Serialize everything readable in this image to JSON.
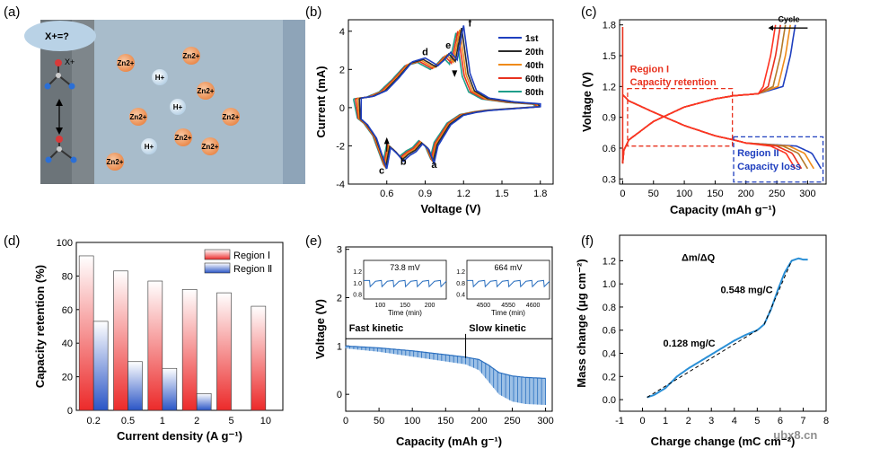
{
  "panels": {
    "a": {
      "label": "(a)",
      "question": "X+=?",
      "ions_zn": [
        "Zn2+",
        "Zn2+",
        "Zn2+",
        "Zn2+",
        "Zn2+",
        "Zn2+",
        "Zn2+",
        "Zn2+",
        "Zn2+",
        "Zn2+"
      ],
      "ions_h": [
        "H+",
        "H+",
        "H+"
      ],
      "molecule_label": "X+",
      "colors": {
        "electrolyte": "#a8bccb",
        "electrode": "#6c7479",
        "zn": "#f0a06a",
        "h": "#e3eef6",
        "bubble": "#b9d2e6"
      }
    },
    "b": {
      "label": "(b)"
    },
    "c": {
      "label": "(c)"
    },
    "d": {
      "label": "(d)"
    },
    "e": {
      "label": "(e)"
    },
    "f": {
      "label": "(f)"
    }
  },
  "chart_data": [
    {
      "id": "b",
      "type": "line",
      "xlabel": "Voltage (V)",
      "ylabel": "Current (mA)",
      "xlim": [
        0.3,
        1.9
      ],
      "ylim": [
        -4,
        4.6
      ],
      "xticks": [
        "0.6",
        "0.9",
        "1.2",
        "1.5",
        "1.8"
      ],
      "xtick_values": [
        0.6,
        0.9,
        1.2,
        1.5,
        1.8
      ],
      "yticks": [
        "-4",
        "-2",
        "0",
        "2",
        "4"
      ],
      "ytick_values": [
        -4,
        -2,
        0,
        2,
        4
      ],
      "legend": [
        "1st",
        "20th",
        "40th",
        "60th",
        "80th"
      ],
      "legend_sup": [
        [
          "1",
          "st"
        ],
        [
          "20",
          "th"
        ],
        [
          "40",
          "th"
        ],
        [
          "60",
          "th"
        ],
        [
          "80",
          "th"
        ]
      ],
      "colors": [
        "#1f3fbf",
        "#2b2b2b",
        "#ef8a1a",
        "#e8321f",
        "#1f9e8a"
      ],
      "peak_labels": [
        {
          "text": "a",
          "x": 0.97,
          "y": -3.15
        },
        {
          "text": "b",
          "x": 0.73,
          "y": -3.0
        },
        {
          "text": "c",
          "x": 0.56,
          "y": -3.45
        },
        {
          "text": "d",
          "x": 0.9,
          "y": 2.75
        },
        {
          "text": "e",
          "x": 1.08,
          "y": 3.1
        },
        {
          "text": "f",
          "x": 1.25,
          "y": 4.25
        }
      ],
      "series": [
        {
          "name": "1st",
          "shift": 0.0,
          "scale": 1.0
        },
        {
          "name": "20th",
          "shift": -0.015,
          "scale": 0.97
        },
        {
          "name": "40th",
          "shift": -0.03,
          "scale": 0.95
        },
        {
          "name": "60th",
          "shift": -0.045,
          "scale": 0.93
        },
        {
          "name": "80th",
          "shift": -0.06,
          "scale": 0.91
        }
      ],
      "oxidation": {
        "x": [
          0.4,
          0.5,
          0.6,
          0.7,
          0.8,
          0.9,
          0.95,
          1.0,
          1.05,
          1.1,
          1.15,
          1.2,
          1.25,
          1.3,
          1.4,
          1.5,
          1.6,
          1.7,
          1.8
        ],
        "y": [
          0.5,
          0.6,
          0.9,
          1.6,
          2.4,
          2.6,
          2.4,
          2.2,
          2.5,
          2.9,
          2.5,
          4.3,
          1.8,
          0.9,
          0.5,
          0.4,
          0.3,
          0.25,
          0.2
        ]
      },
      "reduction": {
        "x": [
          1.8,
          1.7,
          1.6,
          1.5,
          1.4,
          1.3,
          1.2,
          1.1,
          1.0,
          0.97,
          0.93,
          0.88,
          0.83,
          0.78,
          0.73,
          0.68,
          0.63,
          0.6,
          0.57,
          0.52,
          0.45,
          0.4
        ],
        "y": [
          0.05,
          0.0,
          -0.05,
          -0.1,
          -0.15,
          -0.25,
          -0.4,
          -0.9,
          -2.0,
          -2.9,
          -2.2,
          -1.9,
          -2.3,
          -2.5,
          -2.8,
          -2.4,
          -2.1,
          -3.2,
          -2.6,
          -1.6,
          -0.9,
          -0.6
        ]
      }
    },
    {
      "id": "c",
      "type": "line",
      "xlabel": "Capacity (mAh g⁻¹)",
      "ylabel": "Voltage (V)",
      "xlim": [
        -5,
        330
      ],
      "ylim": [
        0.25,
        1.85
      ],
      "xticks": [
        "0",
        "50",
        "100",
        "150",
        "200",
        "250",
        "300"
      ],
      "xtick_values": [
        0,
        50,
        100,
        150,
        200,
        250,
        300
      ],
      "yticks": [
        "0.3",
        "0.6",
        "0.9",
        "1.2",
        "1.5",
        "1.8"
      ],
      "ytick_values": [
        0.3,
        0.6,
        0.9,
        1.2,
        1.5,
        1.8
      ],
      "cycle_label": "Cycle",
      "region1_title": "Region I",
      "region1_sub": "Capacity retention",
      "region2_title": "Region II",
      "region2_sub": "Capacity loss",
      "colors": [
        "#1f3fbf",
        "#ef8a1a",
        "#b57a2a",
        "#e8321f",
        "#ff3322"
      ],
      "ends": [
        322,
        310,
        300,
        290,
        280
      ],
      "charge_ends": [
        280,
        272,
        264,
        256,
        248
      ]
    },
    {
      "id": "d",
      "type": "bar",
      "xlabel": "Current density (A g⁻¹)",
      "ylabel": "Capacity retention (%)",
      "categories": [
        "0.2",
        "0.5",
        "1",
        "2",
        "5",
        "10"
      ],
      "ylim": [
        0,
        100
      ],
      "yticks": [
        "0",
        "20",
        "40",
        "60",
        "80",
        "100"
      ],
      "ytick_values": [
        0,
        20,
        40,
        60,
        80,
        100
      ],
      "series": [
        {
          "name": "Region Ⅰ",
          "values": [
            92,
            83,
            77,
            72,
            70,
            62
          ],
          "color": "#ec2a2a"
        },
        {
          "name": "Region Ⅱ",
          "values": [
            53,
            29,
            25,
            10,
            0,
            0
          ],
          "color": "#2a55c6"
        }
      ]
    },
    {
      "id": "e",
      "type": "line",
      "xlabel": "Capacity (mAh g⁻¹)",
      "ylabel": "Voltage (V)",
      "xlim": [
        0,
        310
      ],
      "ylim": [
        -0.35,
        3.05
      ],
      "xticks": [
        "0",
        "50",
        "100",
        "150",
        "200",
        "250",
        "300"
      ],
      "xtick_values": [
        0,
        50,
        100,
        150,
        200,
        250,
        300
      ],
      "yticks": [
        "0",
        "1",
        "2",
        "3"
      ],
      "ytick_values": [
        0,
        1,
        2,
        3
      ],
      "fast_label": "Fast kinetic",
      "slow_label": "Slow kinetic",
      "boundary_x": 180,
      "color": "#2a6fbf",
      "upper": {
        "x": [
          0,
          50,
          100,
          150,
          180,
          200,
          215,
          230,
          250,
          270,
          300
        ],
        "y": [
          1.0,
          0.96,
          0.9,
          0.82,
          0.77,
          0.72,
          0.6,
          0.45,
          0.38,
          0.35,
          0.33
        ]
      },
      "lower": {
        "x": [
          0,
          50,
          100,
          150,
          180,
          200,
          215,
          230,
          250,
          270,
          300
        ],
        "y": [
          0.95,
          0.88,
          0.78,
          0.68,
          0.62,
          0.5,
          0.25,
          0.0,
          -0.15,
          -0.2,
          -0.22
        ]
      },
      "inset1": {
        "title": "73.8 mV",
        "xlabel": "Time (min)",
        "xticks": [
          "100",
          "150",
          "200"
        ],
        "yticks": [
          "1.2",
          "1.0",
          "0.8"
        ]
      },
      "inset2": {
        "title": "664 mV",
        "xlabel": "Time (min)",
        "xticks": [
          "4500",
          "4550",
          "4600"
        ],
        "yticks": [
          "1.2",
          "0.8",
          "0.4"
        ]
      }
    },
    {
      "id": "f",
      "type": "line",
      "xlabel": "Charge change (mC cm⁻²)",
      "ylabel": "Mass change (μg cm⁻²)",
      "xlim": [
        -1,
        8
      ],
      "ylim": [
        -0.1,
        1.42
      ],
      "xticks": [
        "-1",
        "0",
        "1",
        "2",
        "3",
        "4",
        "5",
        "6",
        "7",
        "8"
      ],
      "xtick_values": [
        -1,
        0,
        1,
        2,
        3,
        4,
        5,
        6,
        7,
        8
      ],
      "yticks": [
        "0.0",
        "0.2",
        "0.4",
        "0.6",
        "0.8",
        "1.0",
        "1.2"
      ],
      "ytick_values": [
        0,
        0.2,
        0.4,
        0.6,
        0.8,
        1.0,
        1.2
      ],
      "title": "Δm/ΔQ",
      "slope1": "0.128 mg/C",
      "slope2": "0.548 mg/C",
      "color": "#2a8fd6",
      "x": [
        0.2,
        0.5,
        1.0,
        1.5,
        2.0,
        2.5,
        3.0,
        3.5,
        4.0,
        4.5,
        5.0,
        5.3,
        5.6,
        5.9,
        6.2,
        6.5,
        6.8,
        7.0,
        7.2
      ],
      "y": [
        0.02,
        0.04,
        0.1,
        0.2,
        0.27,
        0.33,
        0.39,
        0.45,
        0.51,
        0.56,
        0.6,
        0.65,
        0.78,
        0.95,
        1.1,
        1.2,
        1.22,
        1.21,
        1.21
      ],
      "watermark": "ubx8.cn"
    }
  ]
}
